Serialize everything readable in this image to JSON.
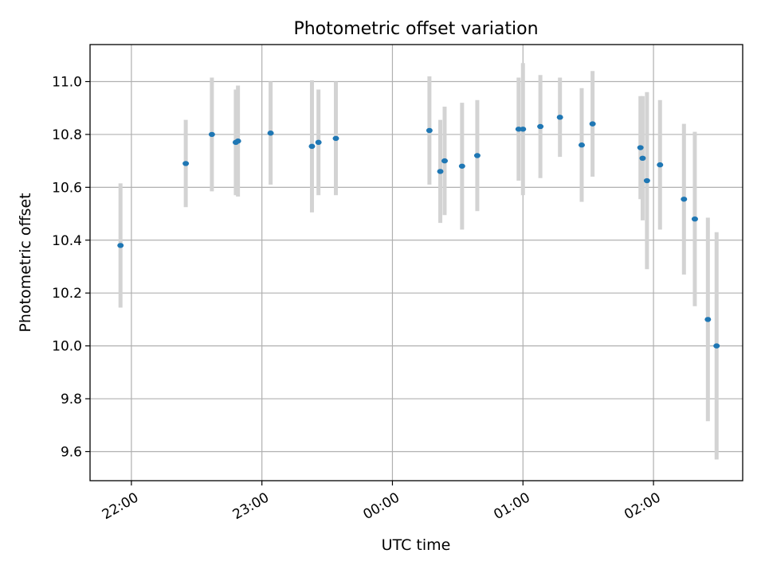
{
  "chart_data": {
    "type": "scatter",
    "title": "Photometric offset variation",
    "xlabel": "UTC time",
    "ylabel": "Photometric offset",
    "x_axis_type": "time",
    "x_ticks": [
      "22:00",
      "23:00",
      "00:00",
      "01:00",
      "02:00"
    ],
    "x_tick_rotation_deg": 30,
    "xlim": [
      "21:41",
      "02:41"
    ],
    "ylim": [
      9.49,
      11.14
    ],
    "y_ticks": [
      9.6,
      9.8,
      10.0,
      10.2,
      10.4,
      10.6,
      10.8,
      11.0
    ],
    "grid": true,
    "legend": "none",
    "series": [
      {
        "points": [
          {
            "x": "21:55",
            "y": 10.38,
            "err": 0.235
          },
          {
            "x": "22:25",
            "y": 10.69,
            "err": 0.165
          },
          {
            "x": "22:37",
            "y": 10.8,
            "err": 0.215
          },
          {
            "x": "22:48",
            "y": 10.77,
            "err": 0.2
          },
          {
            "x": "22:49",
            "y": 10.775,
            "err": 0.21
          },
          {
            "x": "23:04",
            "y": 10.805,
            "err": 0.195
          },
          {
            "x": "23:23",
            "y": 10.755,
            "err": 0.25
          },
          {
            "x": "23:26",
            "y": 10.77,
            "err": 0.2
          },
          {
            "x": "23:34",
            "y": 10.785,
            "err": 0.215
          },
          {
            "x": "00:17",
            "y": 10.815,
            "err": 0.205
          },
          {
            "x": "00:22",
            "y": 10.66,
            "err": 0.195
          },
          {
            "x": "00:24",
            "y": 10.7,
            "err": 0.205
          },
          {
            "x": "00:32",
            "y": 10.68,
            "err": 0.24
          },
          {
            "x": "00:39",
            "y": 10.72,
            "err": 0.21
          },
          {
            "x": "00:58",
            "y": 10.82,
            "err": 0.195
          },
          {
            "x": "01:00",
            "y": 10.82,
            "err": 0.25
          },
          {
            "x": "01:08",
            "y": 10.83,
            "err": 0.195
          },
          {
            "x": "01:17",
            "y": 10.865,
            "err": 0.15
          },
          {
            "x": "01:27",
            "y": 10.76,
            "err": 0.215
          },
          {
            "x": "01:32",
            "y": 10.84,
            "err": 0.2
          },
          {
            "x": "01:54",
            "y": 10.75,
            "err": 0.195
          },
          {
            "x": "01:55",
            "y": 10.71,
            "err": 0.235
          },
          {
            "x": "01:57",
            "y": 10.625,
            "err": 0.335
          },
          {
            "x": "02:03",
            "y": 10.685,
            "err": 0.245
          },
          {
            "x": "02:14",
            "y": 10.555,
            "err": 0.285
          },
          {
            "x": "02:19",
            "y": 10.48,
            "err": 0.33
          },
          {
            "x": "02:25",
            "y": 10.1,
            "err": 0.385
          },
          {
            "x": "02:29",
            "y": 10.0,
            "err": 0.43
          }
        ]
      }
    ],
    "colors": {
      "point": "#1f77b4",
      "errorbar": "#d3d3d3",
      "grid": "#b0b0b0",
      "axes": "#000000"
    }
  }
}
